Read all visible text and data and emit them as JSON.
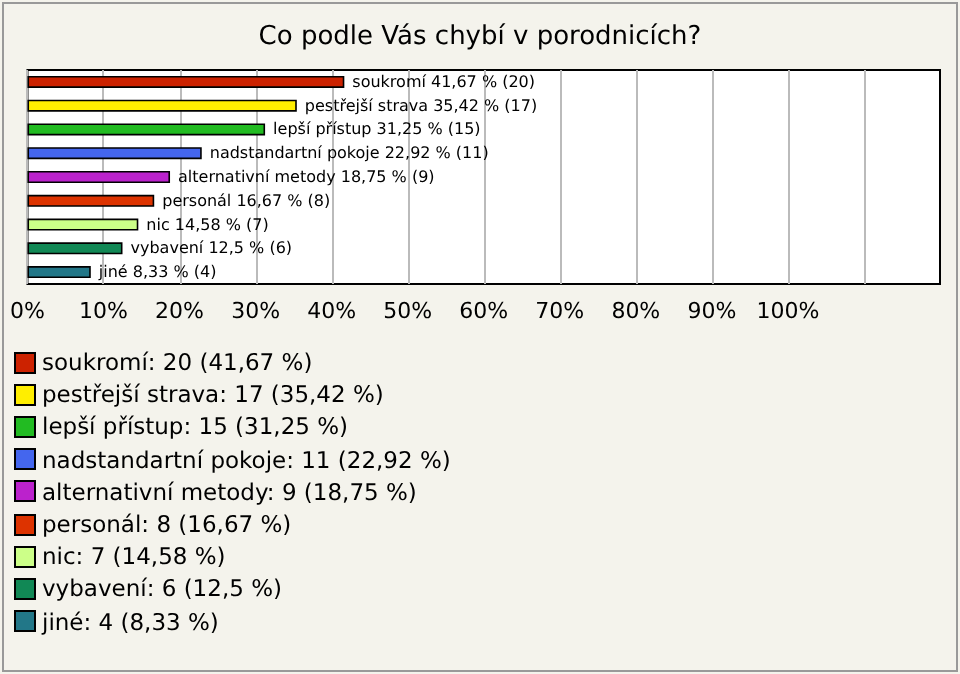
{
  "chart_data": {
    "type": "bar",
    "orientation": "horizontal",
    "title": "Co podle Vás chybí v porodnicích?",
    "categories": [
      null,
      null,
      null,
      null,
      null,
      null,
      null,
      null,
      null
    ],
    "values": [
      41.67,
      35.42,
      31.25,
      22.92,
      18.75,
      16.67,
      14.58,
      12.5,
      8.33
    ],
    "value_labels": [
      "soukromí 41,67 % (20)",
      "pestřejší strava 35,42 % (17)",
      "lepší přístup 31,25 % (15)",
      "nadstandartní pokoje 22,92 % (11)",
      "alternativní metody 18,75 % (9)",
      "personál 16,67 % (8)",
      "nic 14,58 % (7)",
      "vybavení 12,5 % (6)",
      "jiné 8,33 % (4)"
    ],
    "colors": [
      "#cc2200",
      "#ffee00",
      "#22bb22",
      "#4466ee",
      "#bb22cc",
      "#dd3300",
      "#ccff88",
      "#118855",
      "#227788"
    ],
    "xlim": [
      0,
      120
    ],
    "xticks": [
      {
        "value": 0,
        "label": "0%"
      },
      {
        "value": 10,
        "label": "10%"
      },
      {
        "value": 20,
        "label": "20%"
      },
      {
        "value": 30,
        "label": "30%"
      },
      {
        "value": 40,
        "label": "40%"
      },
      {
        "value": 50,
        "label": "50%"
      },
      {
        "value": 60,
        "label": "60%"
      },
      {
        "value": 70,
        "label": "70%"
      },
      {
        "value": 80,
        "label": "80%"
      },
      {
        "value": 90,
        "label": "90%"
      },
      {
        "value": 100,
        "label": "100%"
      },
      {
        "value": 110,
        "label": null
      }
    ],
    "tick_labels": "x",
    "grid": "x",
    "annotations": [
      "soukromí: 20 (41,67 %)",
      "pestřejší strava: 17 (35,42 %)",
      "lepší přístup: 15 (31,25 %)",
      "nadstandartní pokoje: 11 (22,92 %)",
      "alternativní metody: 9 (18,75 %)",
      "personál: 8 (16,67 %)",
      "nic: 7 (14,58 %)",
      "vybavení: 6 (12,5 %)",
      "jiné: 4 (8,33 %)"
    ]
  }
}
